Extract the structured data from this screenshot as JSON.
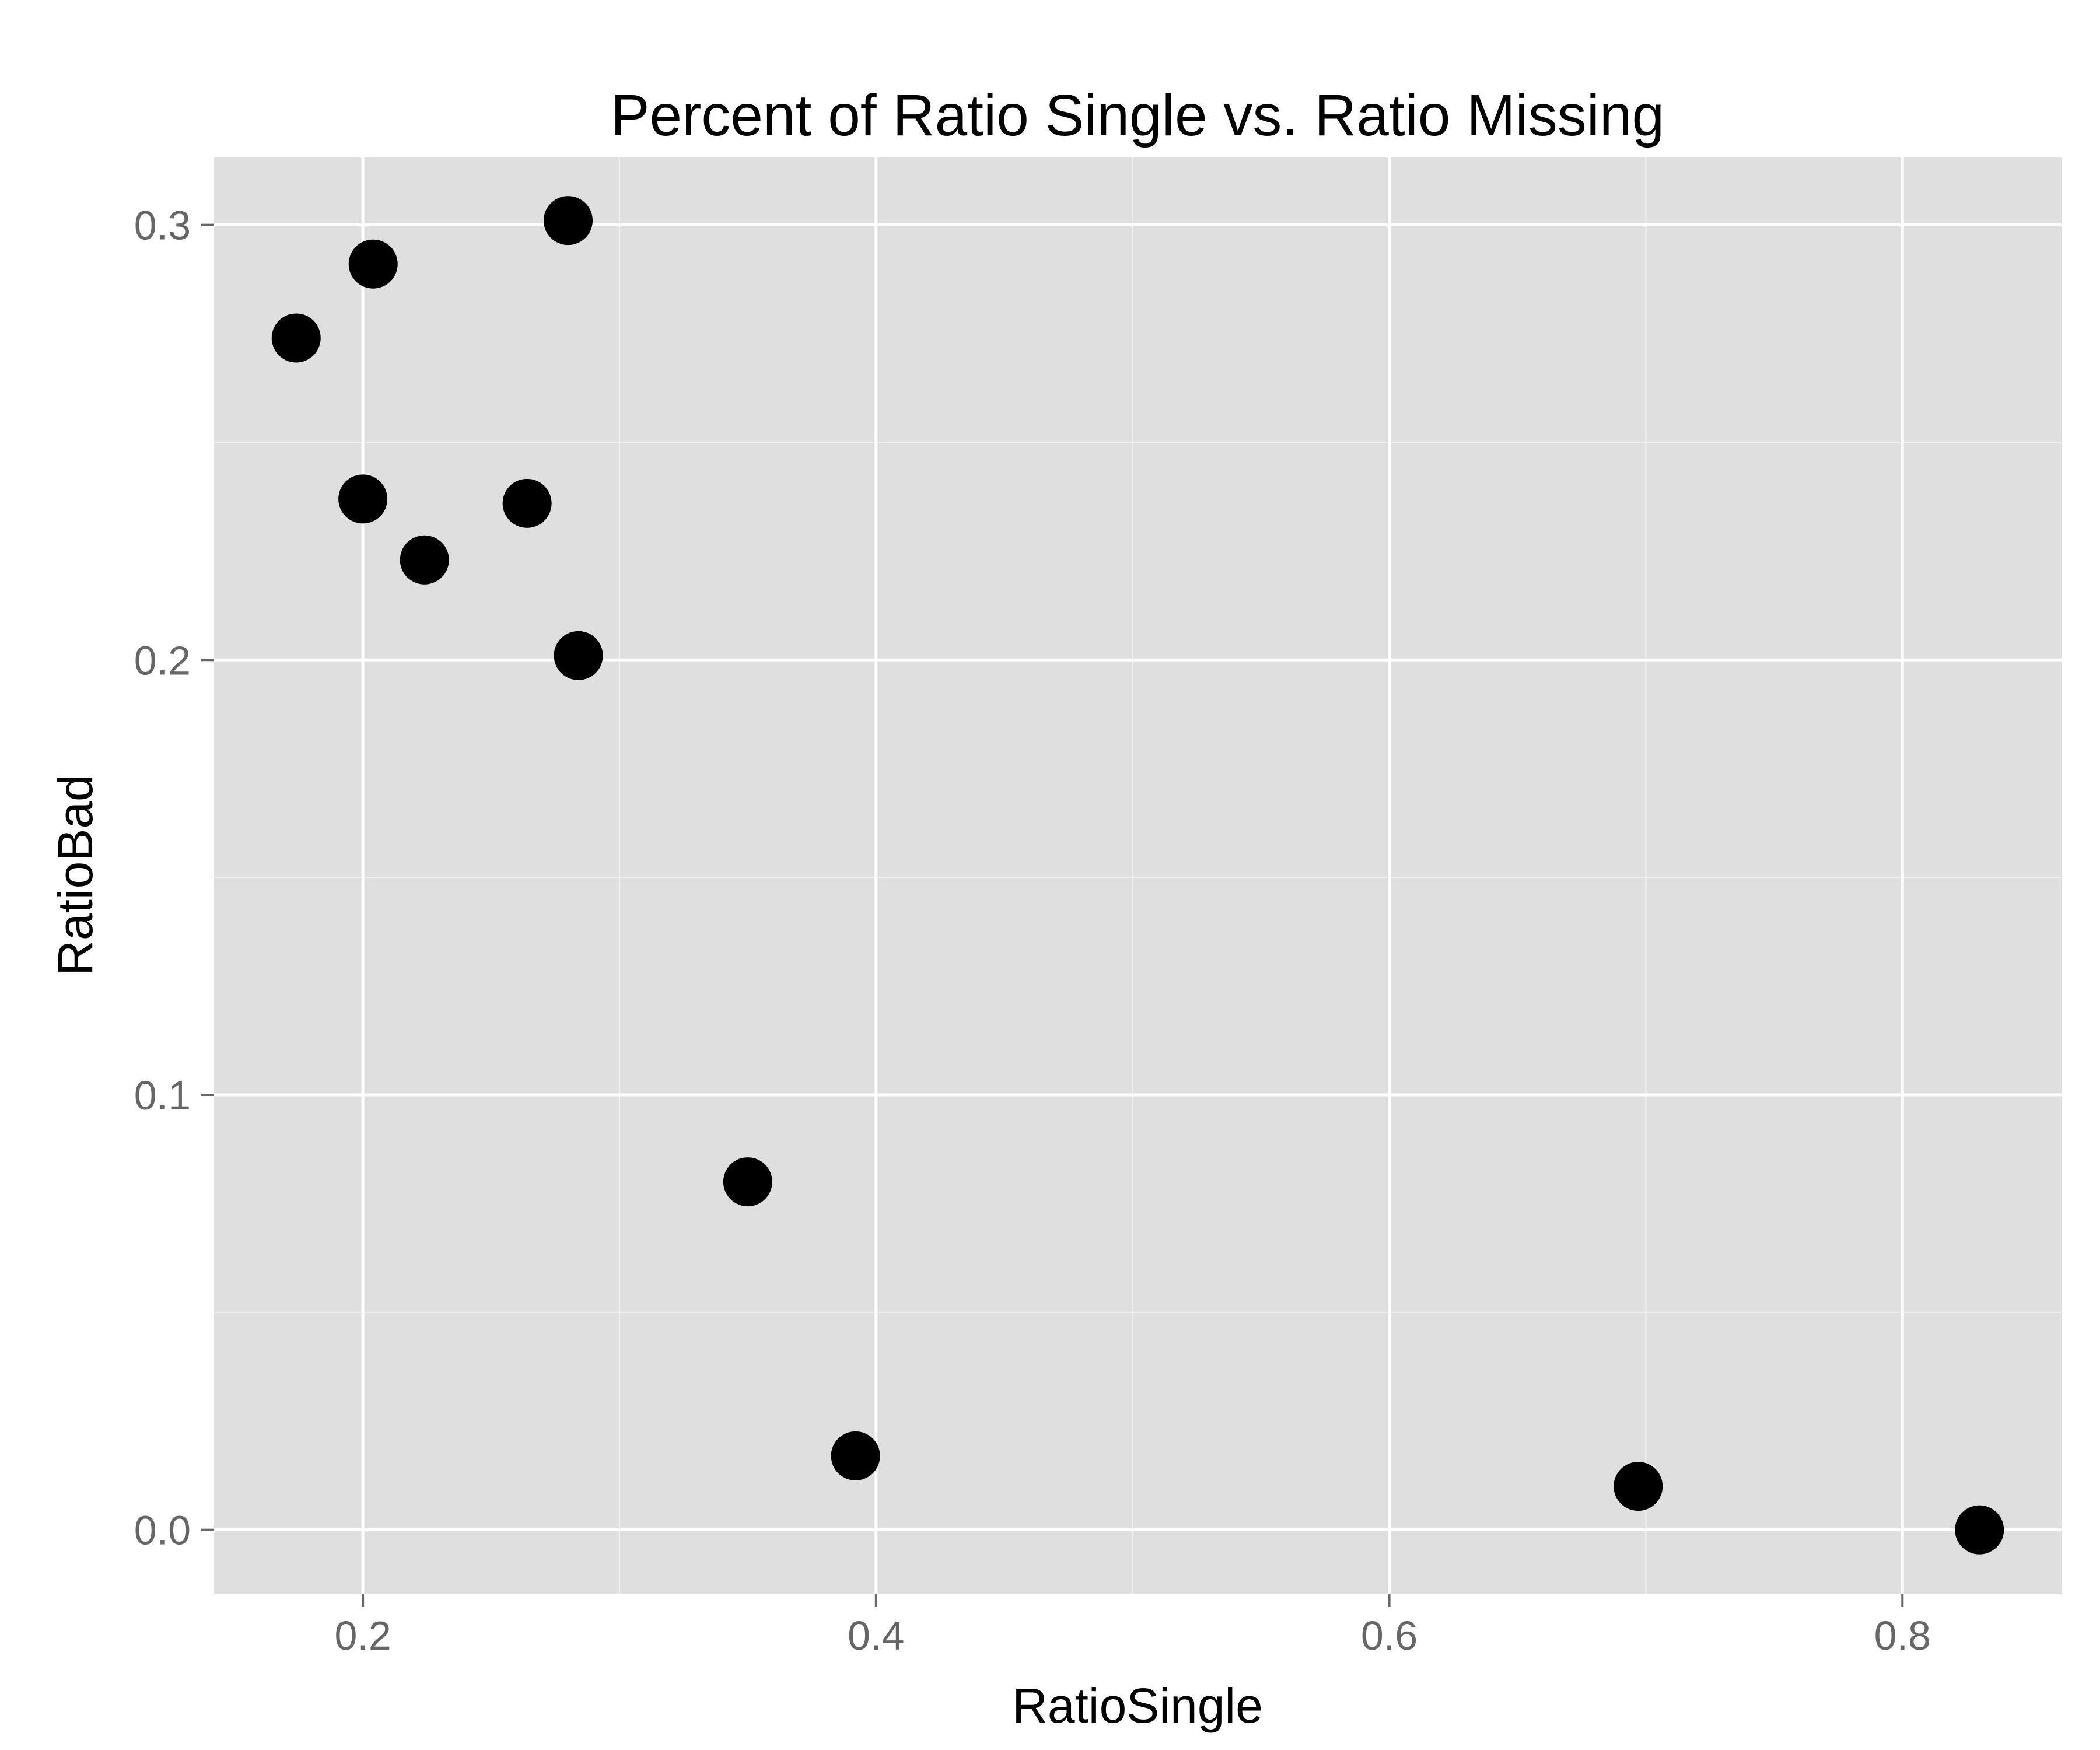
{
  "chart_data": {
    "type": "scatter",
    "title": "Percent of Ratio Single vs. Ratio Missing",
    "xlabel": "RatioSingle",
    "ylabel": "RatioBad",
    "xlim": [
      0.142,
      0.862
    ],
    "ylim": [
      -0.0148,
      0.3155
    ],
    "x_ticks": [
      {
        "value": 0.2,
        "label": "0.2"
      },
      {
        "value": 0.4,
        "label": "0.4"
      },
      {
        "value": 0.6,
        "label": "0.6"
      },
      {
        "value": 0.8,
        "label": "0.8"
      }
    ],
    "y_ticks": [
      {
        "value": 0.0,
        "label": "0.0"
      },
      {
        "value": 0.1,
        "label": "0.1"
      },
      {
        "value": 0.2,
        "label": "0.2"
      },
      {
        "value": 0.3,
        "label": "0.3"
      }
    ],
    "grid": true,
    "point_color": "#000000",
    "panel_background": "#dfdfdf",
    "grid_color": "#ffffff",
    "points": [
      {
        "x": 0.174,
        "y": 0.274
      },
      {
        "x": 0.204,
        "y": 0.291
      },
      {
        "x": 0.28,
        "y": 0.301
      },
      {
        "x": 0.2,
        "y": 0.237
      },
      {
        "x": 0.224,
        "y": 0.223
      },
      {
        "x": 0.264,
        "y": 0.236
      },
      {
        "x": 0.284,
        "y": 0.201
      },
      {
        "x": 0.35,
        "y": 0.08
      },
      {
        "x": 0.392,
        "y": 0.017
      },
      {
        "x": 0.697,
        "y": 0.01
      },
      {
        "x": 0.83,
        "y": 0.0
      }
    ]
  }
}
